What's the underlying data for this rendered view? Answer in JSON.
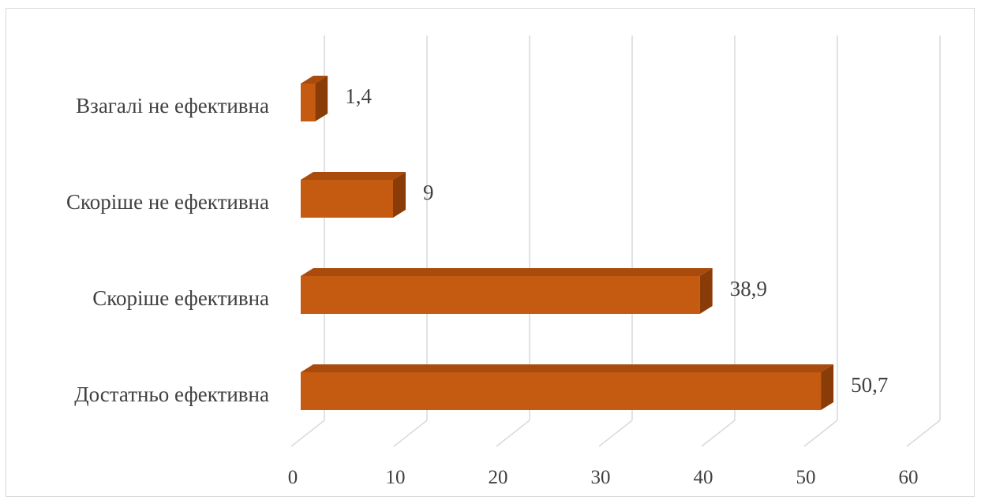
{
  "chart_data": {
    "type": "bar",
    "orientation": "horizontal",
    "style": "3d",
    "categories": [
      "Взагалі не ефективна",
      "Скоріше не ефективна",
      "Скоріше ефективна",
      "Достатньо ефективна"
    ],
    "values": [
      1.4,
      9,
      38.9,
      50.7
    ],
    "data_labels": [
      "1,4",
      "9",
      "38,9",
      "50,7"
    ],
    "xlim": [
      0,
      60
    ],
    "ticks": [
      0,
      10,
      20,
      30,
      40,
      50,
      60
    ],
    "tick_labels": [
      "0",
      "10",
      "20",
      "30",
      "40",
      "50",
      "60"
    ],
    "grid": true,
    "legend": "none",
    "colors": {
      "bar_front": "#C55A11",
      "bar_top": "#A84B0D",
      "bar_side": "#8A3C08",
      "grid": "#d9d9d9"
    }
  }
}
